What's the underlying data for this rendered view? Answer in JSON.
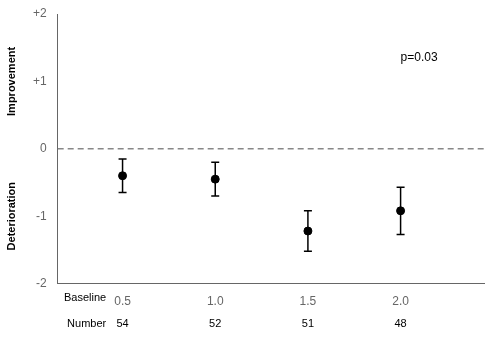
{
  "chart_data": {
    "type": "scatter",
    "x": [
      0.5,
      1.0,
      1.5,
      2.0
    ],
    "values": [
      -0.4,
      -0.45,
      -1.22,
      -0.92
    ],
    "errors": [
      0.25,
      0.25,
      0.3,
      0.35
    ],
    "color": "#000000",
    "marker": "circle",
    "xlim": [
      0.15,
      2.45
    ],
    "xticks": [
      0.5,
      {
        "value": 1.0,
        "label": "1.0"
      },
      1.5,
      {
        "value": 2.0,
        "label": "2.0"
      }
    ],
    "ylim": [
      -2,
      2
    ],
    "yticks": [
      -2,
      -1,
      0,
      {
        "value": 1,
        "label": "+1"
      },
      {
        "value": 2,
        "label": "+2"
      }
    ],
    "ylabel_top": "Improvement",
    "ylabel_bottom": "Deterioration",
    "reference_line": {
      "y": 0,
      "color": "#888888",
      "line_style": "dashed"
    },
    "annotations": [
      {
        "text": "p=0.03",
        "x": 2.1,
        "y": 1.35
      }
    ],
    "x_row_label": "Baseline",
    "count_label": "Number",
    "counts": [
      54,
      52,
      51,
      48
    ],
    "grid": false
  }
}
